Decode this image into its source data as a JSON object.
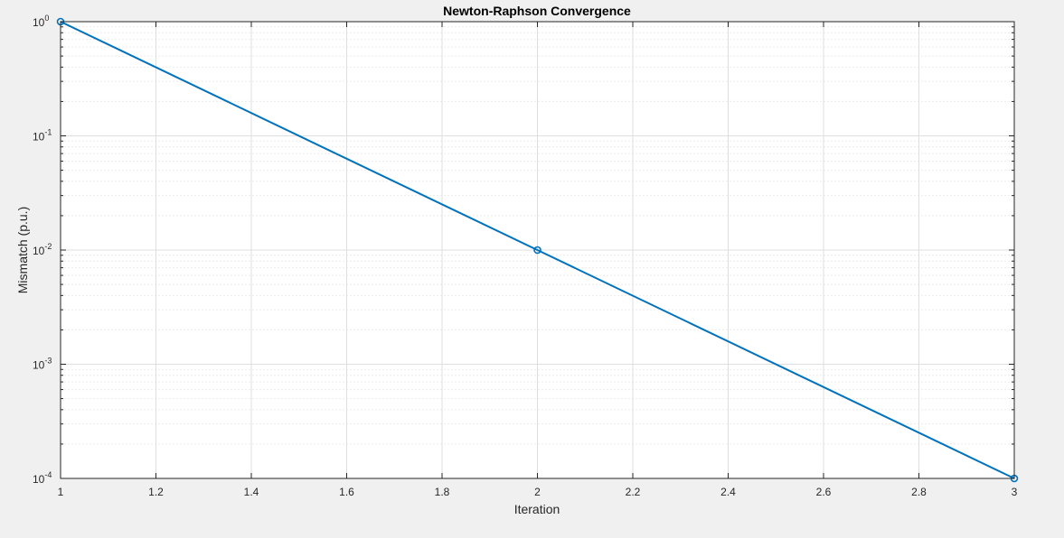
{
  "chart_data": {
    "type": "line",
    "title": "Newton-Raphson Convergence",
    "xlabel": "Iteration",
    "ylabel": "Mismatch (p.u.)",
    "xlim": [
      1,
      3
    ],
    "ylim": [
      0.0001,
      1
    ],
    "yscale": "log",
    "grid": true,
    "minor_grid": true,
    "x_ticks": [
      1,
      1.2,
      1.4,
      1.6,
      1.8,
      2,
      2.2,
      2.4,
      2.6,
      2.8,
      3
    ],
    "x_tick_labels": [
      "1",
      "1.2",
      "1.4",
      "1.6",
      "1.8",
      "2",
      "2.2",
      "2.4",
      "2.6",
      "2.8",
      "3"
    ],
    "y_ticks": [
      {
        "value": 1,
        "base": "10",
        "exp": "0"
      },
      {
        "value": 0.1,
        "base": "10",
        "exp": "-1"
      },
      {
        "value": 0.01,
        "base": "10",
        "exp": "-2"
      },
      {
        "value": 0.001,
        "base": "10",
        "exp": "-3"
      },
      {
        "value": 0.0001,
        "base": "10",
        "exp": "-4"
      }
    ],
    "series": [
      {
        "x": [
          1,
          2,
          3
        ],
        "y": [
          1,
          0.01,
          0.0001
        ],
        "color": "#0072BD",
        "marker": "circle"
      }
    ]
  }
}
